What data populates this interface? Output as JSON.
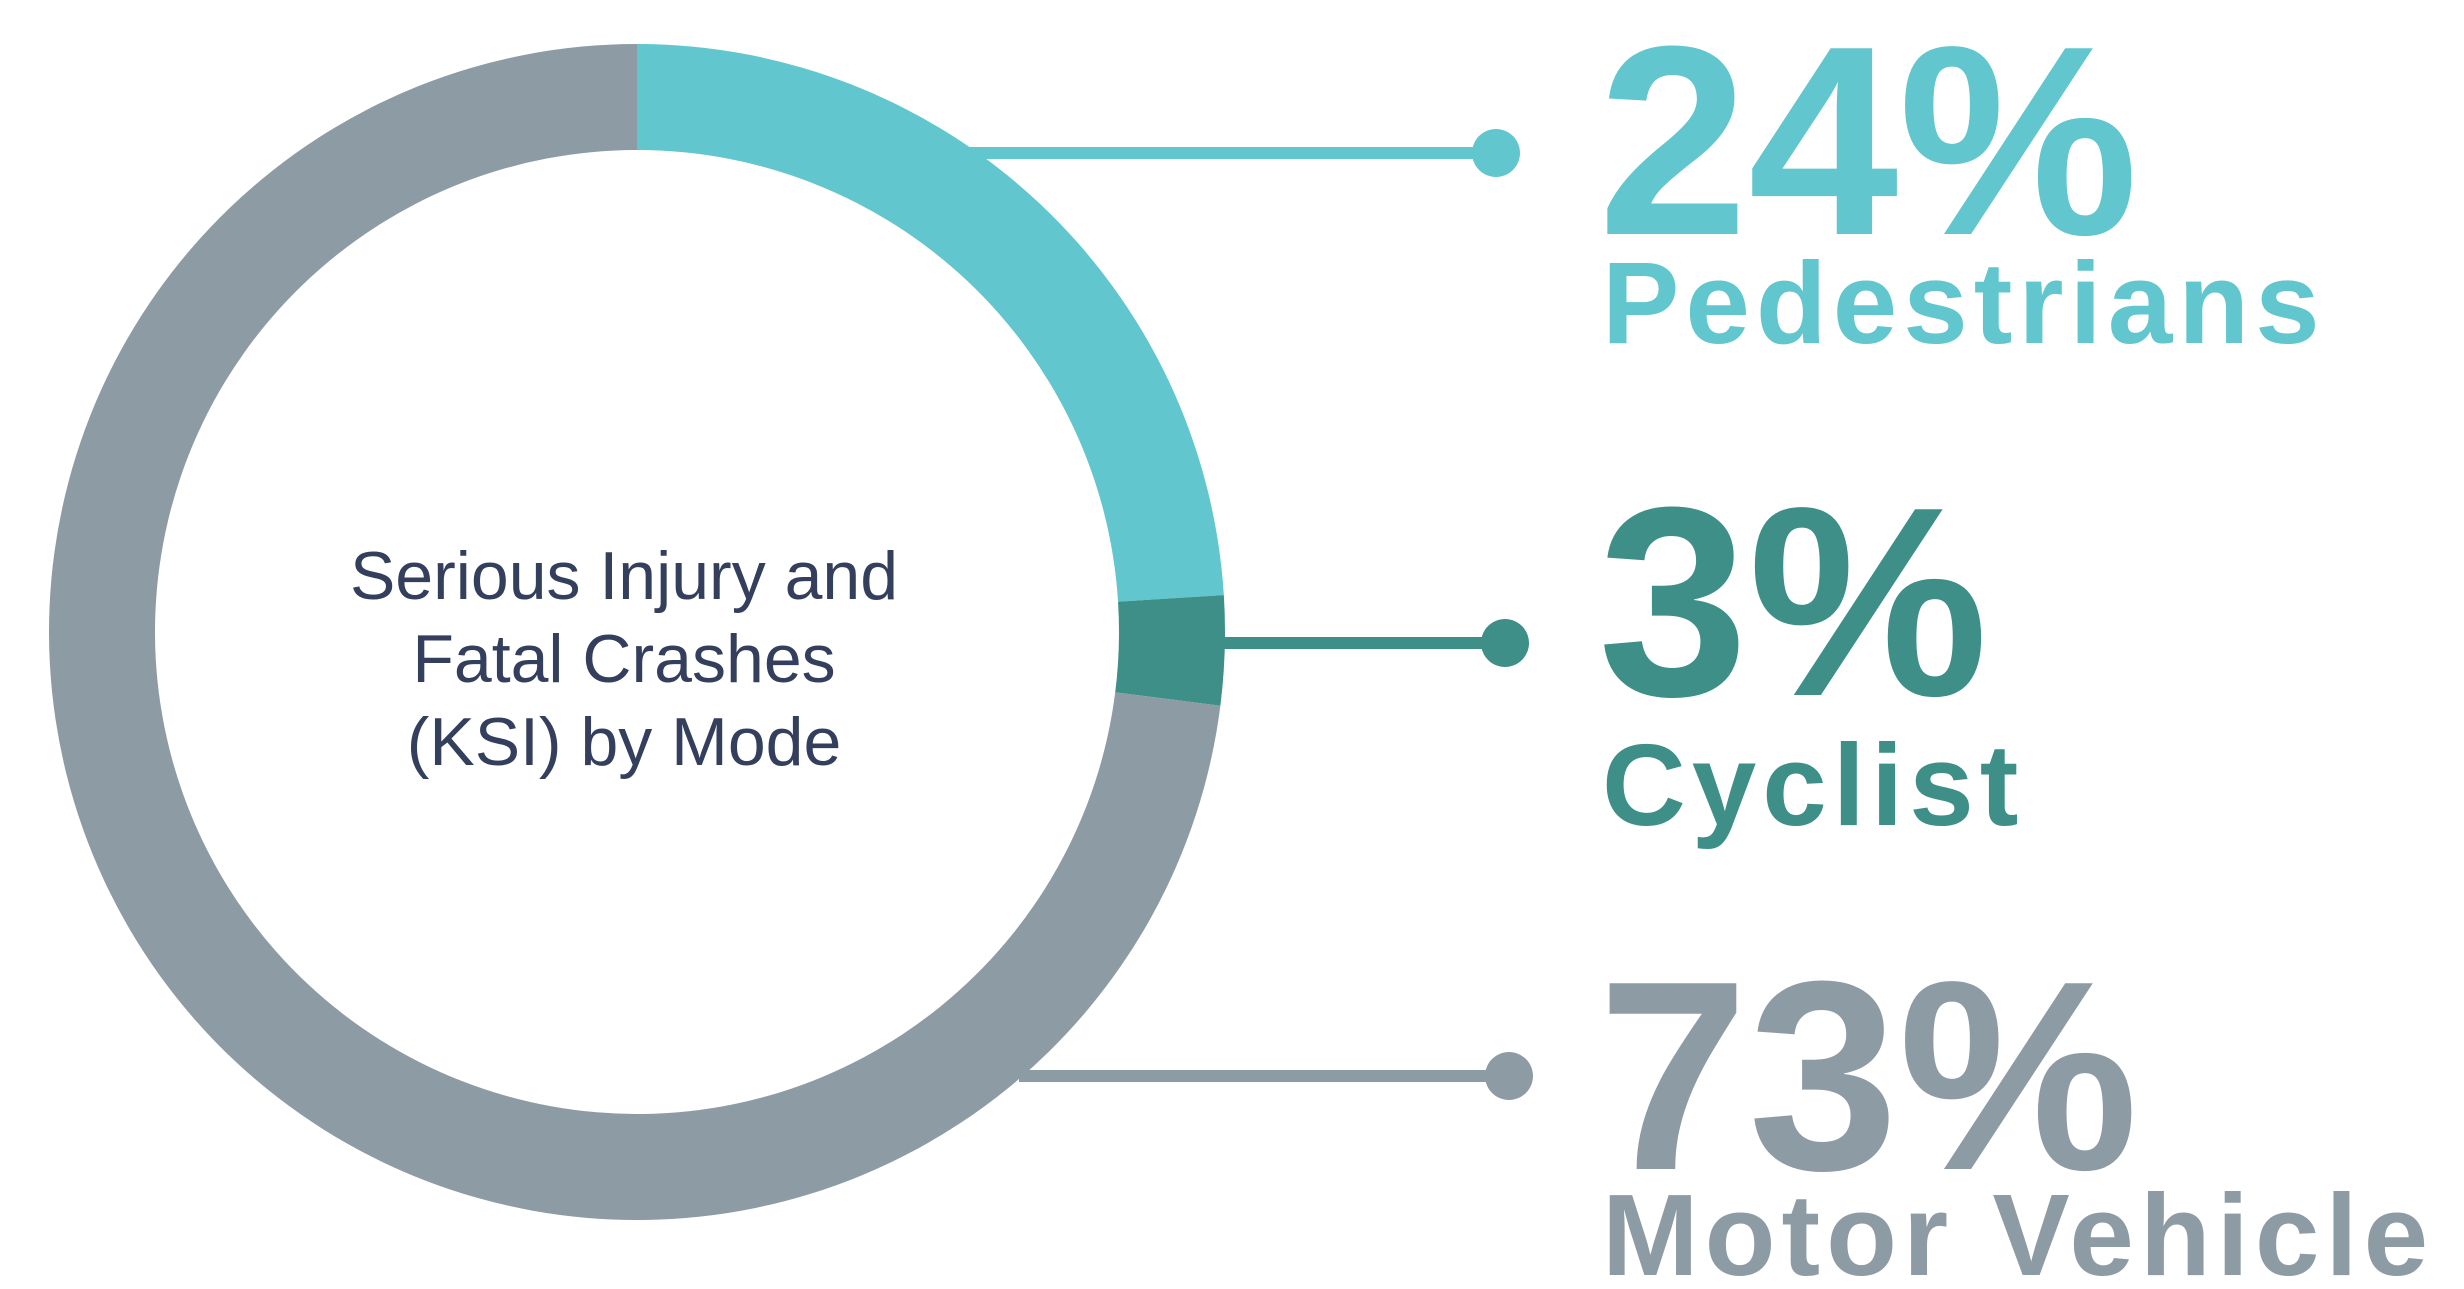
{
  "chart_data": {
    "type": "donut",
    "title": "Serious Injury and Fatal Crashes (KSI) by Mode",
    "categories": [
      "Pedestrians",
      "Cyclist",
      "Motor Vehicle"
    ],
    "values": [
      24,
      3,
      73
    ],
    "value_labels": [
      "24%",
      "3%",
      "73%"
    ],
    "colors": [
      "#62c6cf",
      "#3d8f87",
      "#8d9ca4"
    ]
  }
}
